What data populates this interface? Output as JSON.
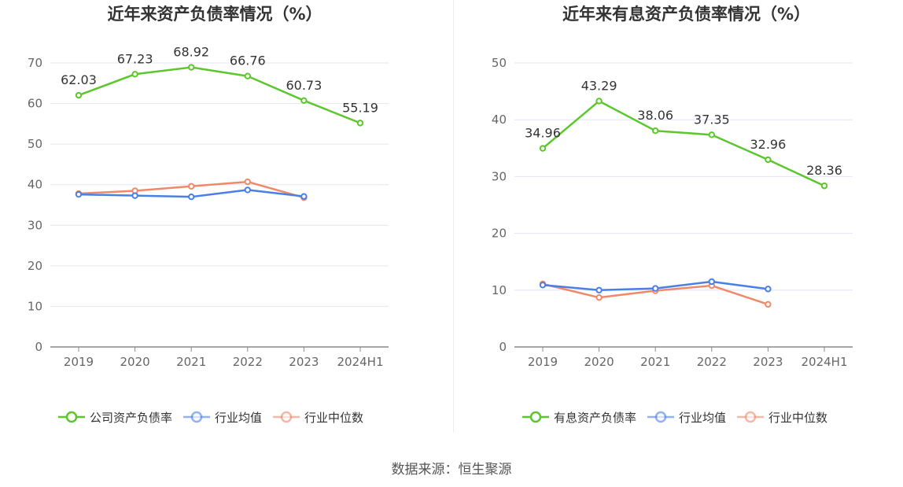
{
  "colors": {
    "company": "#5cc72c",
    "avg": "#4a7fe8",
    "median": "#f0896a",
    "grid": "#e4e6f2",
    "axis": "#888888",
    "tick": "#666666",
    "label": "#333333"
  },
  "source": "数据来源：恒生聚源",
  "chart_data": [
    {
      "type": "line",
      "title": "近年来资产负债率情况（%）",
      "categories": [
        "2019",
        "2020",
        "2021",
        "2022",
        "2023",
        "2024H1"
      ],
      "ylim": [
        0,
        70
      ],
      "yticks": [
        0,
        10,
        20,
        30,
        40,
        50,
        60,
        70
      ],
      "grid": true,
      "legend_position": "bottom",
      "series": [
        {
          "name": "公司资产负债率",
          "color_key": "company",
          "values": [
            62.03,
            67.23,
            68.92,
            66.76,
            60.73,
            55.19
          ],
          "labels": [
            "62.03",
            "67.23",
            "68.92",
            "66.76",
            "60.73",
            "55.19"
          ]
        },
        {
          "name": "行业均值",
          "color_key": "avg",
          "values": [
            37.6,
            37.3,
            37.0,
            38.7,
            37.1,
            null
          ]
        },
        {
          "name": "行业中位数",
          "color_key": "median",
          "values": [
            37.8,
            38.5,
            39.6,
            40.7,
            36.8,
            null
          ]
        }
      ]
    },
    {
      "type": "line",
      "title": "近年来有息资产负债率情况（%）",
      "categories": [
        "2019",
        "2020",
        "2021",
        "2022",
        "2023",
        "2024H1"
      ],
      "ylim": [
        0,
        50
      ],
      "yticks": [
        0,
        10,
        20,
        30,
        40,
        50
      ],
      "grid": true,
      "legend_position": "bottom",
      "series": [
        {
          "name": "有息资产负债率",
          "color_key": "company",
          "values": [
            34.96,
            43.29,
            38.06,
            37.35,
            32.96,
            28.36
          ],
          "labels": [
            "34.96",
            "43.29",
            "38.06",
            "37.35",
            "32.96",
            "28.36"
          ]
        },
        {
          "name": "行业均值",
          "color_key": "avg",
          "values": [
            10.9,
            10.0,
            10.3,
            11.5,
            10.2,
            null
          ]
        },
        {
          "name": "行业中位数",
          "color_key": "median",
          "values": [
            11.1,
            8.7,
            9.9,
            10.8,
            7.5,
            null
          ]
        }
      ]
    }
  ]
}
